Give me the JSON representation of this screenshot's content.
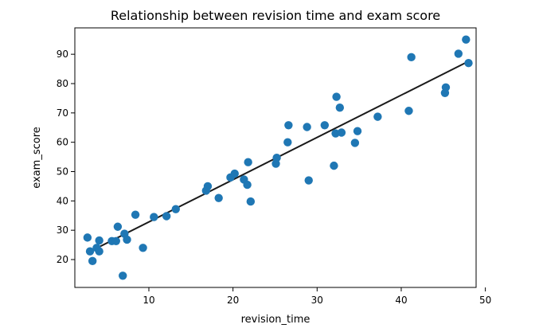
{
  "chart_data": {
    "type": "scatter",
    "title": "Relationship between revision time and exam score",
    "xlabel": "revision_time",
    "ylabel": "exam_score",
    "xlim": [
      1.2,
      48.9
    ],
    "ylim": [
      10.5,
      99.0
    ],
    "xticks": [
      10,
      20,
      30,
      40,
      50
    ],
    "yticks": [
      20,
      30,
      40,
      50,
      60,
      70,
      80,
      90
    ],
    "grid": false,
    "legend": "none",
    "colors": {
      "points": "#1f77b4",
      "fit_line": "#1a1a1a"
    },
    "series": [
      {
        "kind": "points",
        "x": [
          2.7,
          3.0,
          3.3,
          3.8,
          4.1,
          4.1,
          5.6,
          6.1,
          6.3,
          6.9,
          7.1,
          7.4,
          8.4,
          9.3,
          10.6,
          12.1,
          13.2,
          16.8,
          17.0,
          18.3,
          19.7,
          20.2,
          21.3,
          21.7,
          21.8,
          22.1,
          25.1,
          25.2,
          26.5,
          26.6,
          28.8,
          29.0,
          30.9,
          32.0,
          32.2,
          32.3,
          32.7,
          32.9,
          34.5,
          34.8,
          37.2,
          40.9,
          41.2,
          45.2,
          45.3,
          46.8,
          47.7,
          48.0
        ],
        "y": [
          27.5,
          22.8,
          19.5,
          24.0,
          26.5,
          22.8,
          26.3,
          26.3,
          31.2,
          14.5,
          28.8,
          26.8,
          35.3,
          24.0,
          34.5,
          34.8,
          37.2,
          43.5,
          45.0,
          41.0,
          48.0,
          49.3,
          47.3,
          45.5,
          53.2,
          39.8,
          52.7,
          54.7,
          60.0,
          65.8,
          65.2,
          47.0,
          65.8,
          52.0,
          63.0,
          75.5,
          71.8,
          63.3,
          59.8,
          63.8,
          68.7,
          70.7,
          89.0,
          76.8,
          78.7,
          90.2,
          95.0,
          87.0
        ]
      },
      {
        "kind": "fit_line",
        "x": [
          2.7,
          48.0
        ],
        "y": [
          22.3,
          87.6
        ]
      }
    ]
  }
}
